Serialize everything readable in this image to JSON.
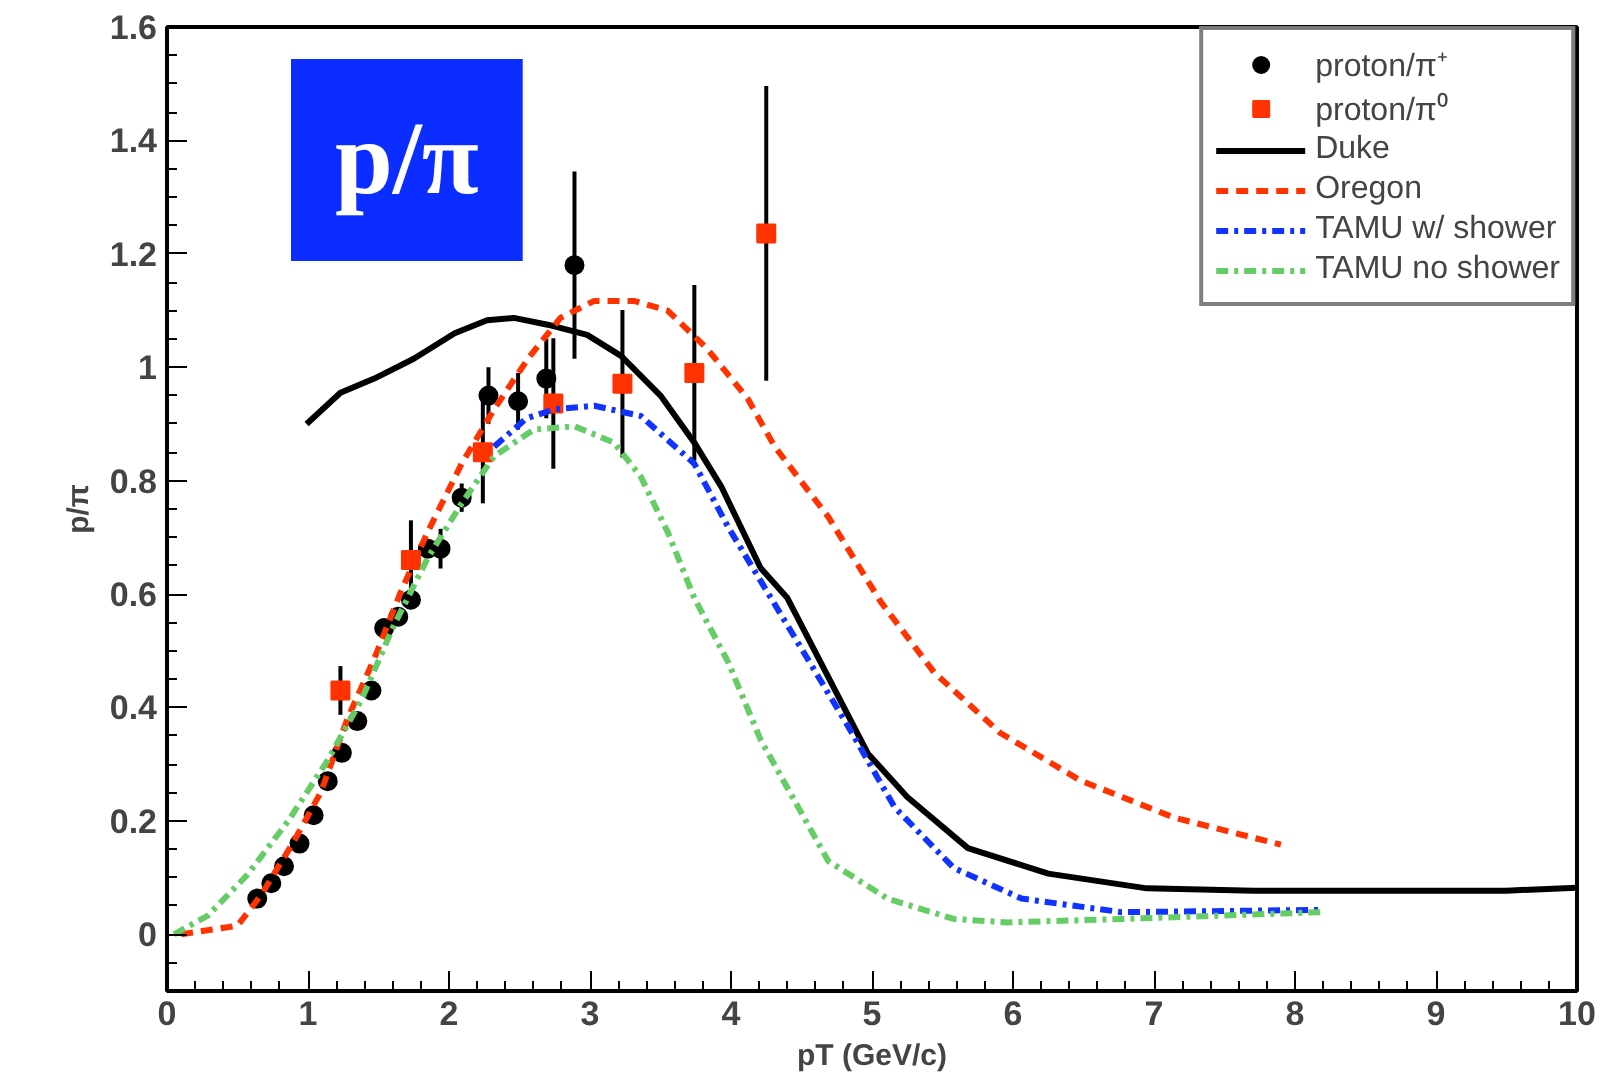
{
  "chart_data": {
    "type": "scatter",
    "xlabel": "pT (GeV/c)",
    "ylabel": "p/π",
    "xlim": [
      0,
      10
    ],
    "ylim": [
      -0.1,
      1.6
    ],
    "xticks": [
      0,
      1,
      2,
      3,
      4,
      5,
      6,
      7,
      8,
      9,
      10
    ],
    "yticks": [
      0,
      0.2,
      0.4,
      0.6,
      0.8,
      1,
      1.2,
      1.4,
      1.6
    ],
    "grid": false,
    "legend": "top right",
    "annotations": [
      "p/π"
    ],
    "series": [
      {
        "name": "proton/π⁺",
        "marker": "circle",
        "color": "#000000",
        "x": [
          0.64,
          0.74,
          0.83,
          0.94,
          1.04,
          1.14,
          1.24,
          1.35,
          1.45,
          1.54,
          1.64,
          1.73,
          1.85,
          1.94,
          2.09,
          2.28,
          2.49,
          2.69,
          2.89
        ],
        "values": [
          0.063,
          0.09,
          0.12,
          0.16,
          0.21,
          0.27,
          0.32,
          0.376,
          0.43,
          0.54,
          0.56,
          0.59,
          0.68,
          0.68,
          0.77,
          0.95,
          0.94,
          0.98,
          1.18
        ],
        "errors": [
          null,
          null,
          null,
          null,
          null,
          null,
          null,
          null,
          null,
          null,
          null,
          null,
          null,
          0.035,
          0.025,
          0.05,
          0.05,
          0.07,
          0.165
        ]
      },
      {
        "name": "proton/π⁰",
        "marker": "square",
        "color": "#ff3300",
        "x": [
          1.23,
          1.73,
          2.24,
          2.74,
          3.23,
          3.74,
          4.25
        ],
        "values": [
          0.43,
          0.66,
          0.85,
          0.936,
          0.971,
          0.99,
          1.236
        ],
        "errors": [
          0.043,
          0.07,
          0.09,
          0.115,
          0.13,
          0.155,
          0.26
        ]
      },
      {
        "name": "Duke",
        "type": "line",
        "line_style": "solid",
        "color": "#000000",
        "x": [
          0.99,
          1.23,
          1.47,
          1.75,
          2.04,
          2.27,
          2.46,
          2.7,
          2.98,
          3.22,
          3.5,
          3.74,
          3.93,
          4.21,
          4.4,
          4.97,
          5.25,
          5.68,
          6.25,
          6.95,
          7.71,
          9.5,
          10
        ],
        "values": [
          0.9,
          0.955,
          0.98,
          1.015,
          1.06,
          1.083,
          1.087,
          1.075,
          1.057,
          1.02,
          0.95,
          0.867,
          0.79,
          0.646,
          0.593,
          0.319,
          0.242,
          0.152,
          0.107,
          0.081,
          0.077,
          0.077,
          0.082
        ]
      },
      {
        "name": "Oregon",
        "type": "line",
        "line_style": "dashed",
        "color": "#ff3300",
        "x": [
          0.1,
          0.5,
          0.67,
          0.9,
          1.09,
          1.28,
          1.47,
          1.66,
          1.85,
          2.09,
          2.32,
          2.56,
          2.79,
          3.03,
          3.31,
          3.55,
          3.83,
          4.12,
          4.31,
          4.69,
          5.06,
          5.44,
          5.91,
          6.48,
          7.14,
          7.9
        ],
        "values": [
          0,
          0.015,
          0.07,
          0.164,
          0.25,
          0.38,
          0.486,
          0.605,
          0.71,
          0.83,
          0.926,
          1.015,
          1.087,
          1.117,
          1.117,
          1.1,
          1.033,
          0.944,
          0.86,
          0.736,
          0.587,
          0.462,
          0.355,
          0.271,
          0.206,
          0.158
        ]
      },
      {
        "name": "TAMU w/ shower",
        "type": "line",
        "line_style": "dashdot",
        "color": "#1133ff",
        "x": [
          2.32,
          2.55,
          2.75,
          3.03,
          3.36,
          3.74,
          3.98,
          4.4,
          4.83,
          5.16,
          5.58,
          6.06,
          6.77,
          8.18
        ],
        "values": [
          0.86,
          0.91,
          0.926,
          0.932,
          0.914,
          0.83,
          0.718,
          0.545,
          0.367,
          0.224,
          0.117,
          0.063,
          0.039,
          0.043
        ]
      },
      {
        "name": "TAMU no shower",
        "type": "line",
        "line_style": "dashdot",
        "color": "#66cc66",
        "x": [
          0.05,
          0.29,
          0.57,
          0.86,
          1.14,
          1.38,
          1.61,
          1.85,
          2.09,
          2.32,
          2.6,
          2.89,
          3.17,
          3.36,
          3.55,
          3.74,
          3.98,
          4.21,
          4.45,
          4.69,
          5.11,
          5.58,
          5.96,
          6.77,
          8.18
        ],
        "values": [
          0,
          0.033,
          0.105,
          0.2,
          0.307,
          0.414,
          0.545,
          0.664,
          0.76,
          0.843,
          0.89,
          0.896,
          0.867,
          0.807,
          0.71,
          0.593,
          0.48,
          0.343,
          0.236,
          0.129,
          0.063,
          0.027,
          0.021,
          0.027,
          0.039
        ]
      }
    ]
  }
}
